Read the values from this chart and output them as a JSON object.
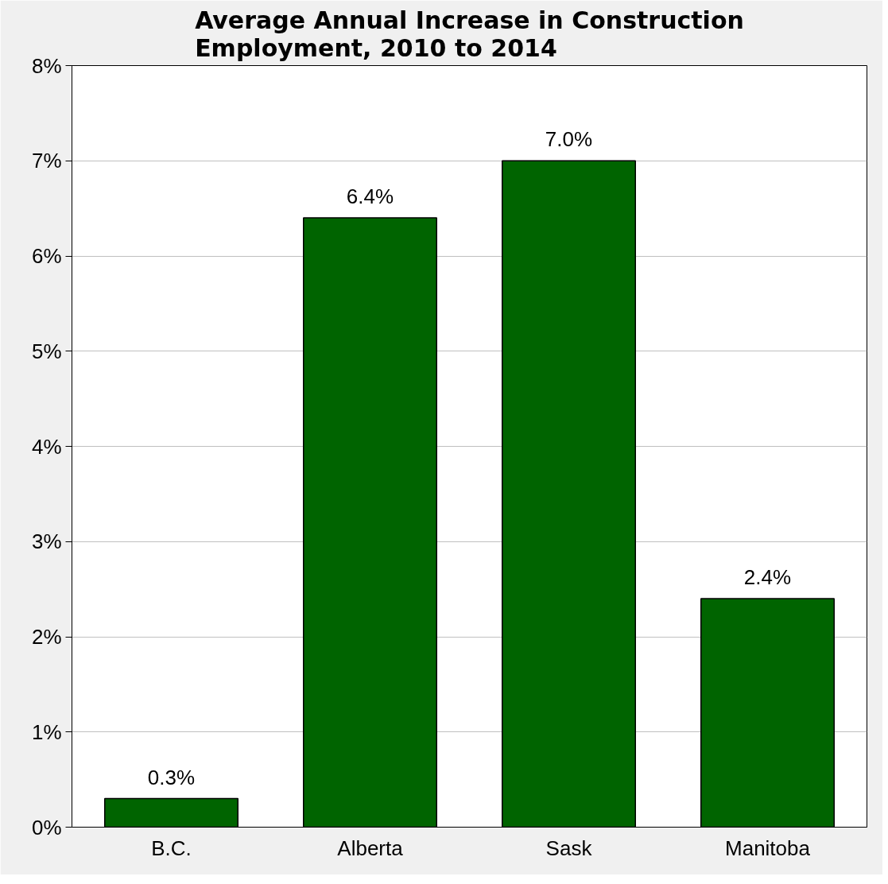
{
  "chart_data": {
    "type": "bar",
    "title": "Average Annual Increase in Construction Employment, 2010 to 2014",
    "categories": [
      "B.C.",
      "Alberta",
      "Sask",
      "Manitoba"
    ],
    "values": [
      0.3,
      6.4,
      7.0,
      2.4
    ],
    "color": "#006400",
    "value_labels": [
      "0.3%",
      "6.4%",
      "7.0%",
      "2.4%"
    ],
    "ylim": [
      0,
      8
    ],
    "yticks": [
      {
        "value": 0,
        "label": "0%"
      },
      {
        "value": 1,
        "label": "1%"
      },
      {
        "value": 2,
        "label": "2%"
      },
      {
        "value": 3,
        "label": "3%"
      },
      {
        "value": 4,
        "label": "4%"
      },
      {
        "value": 5,
        "label": "5%"
      },
      {
        "value": 6,
        "label": "6%"
      },
      {
        "value": 7,
        "label": "7%"
      },
      {
        "value": 8,
        "label": "8%"
      }
    ],
    "grid": "y"
  }
}
